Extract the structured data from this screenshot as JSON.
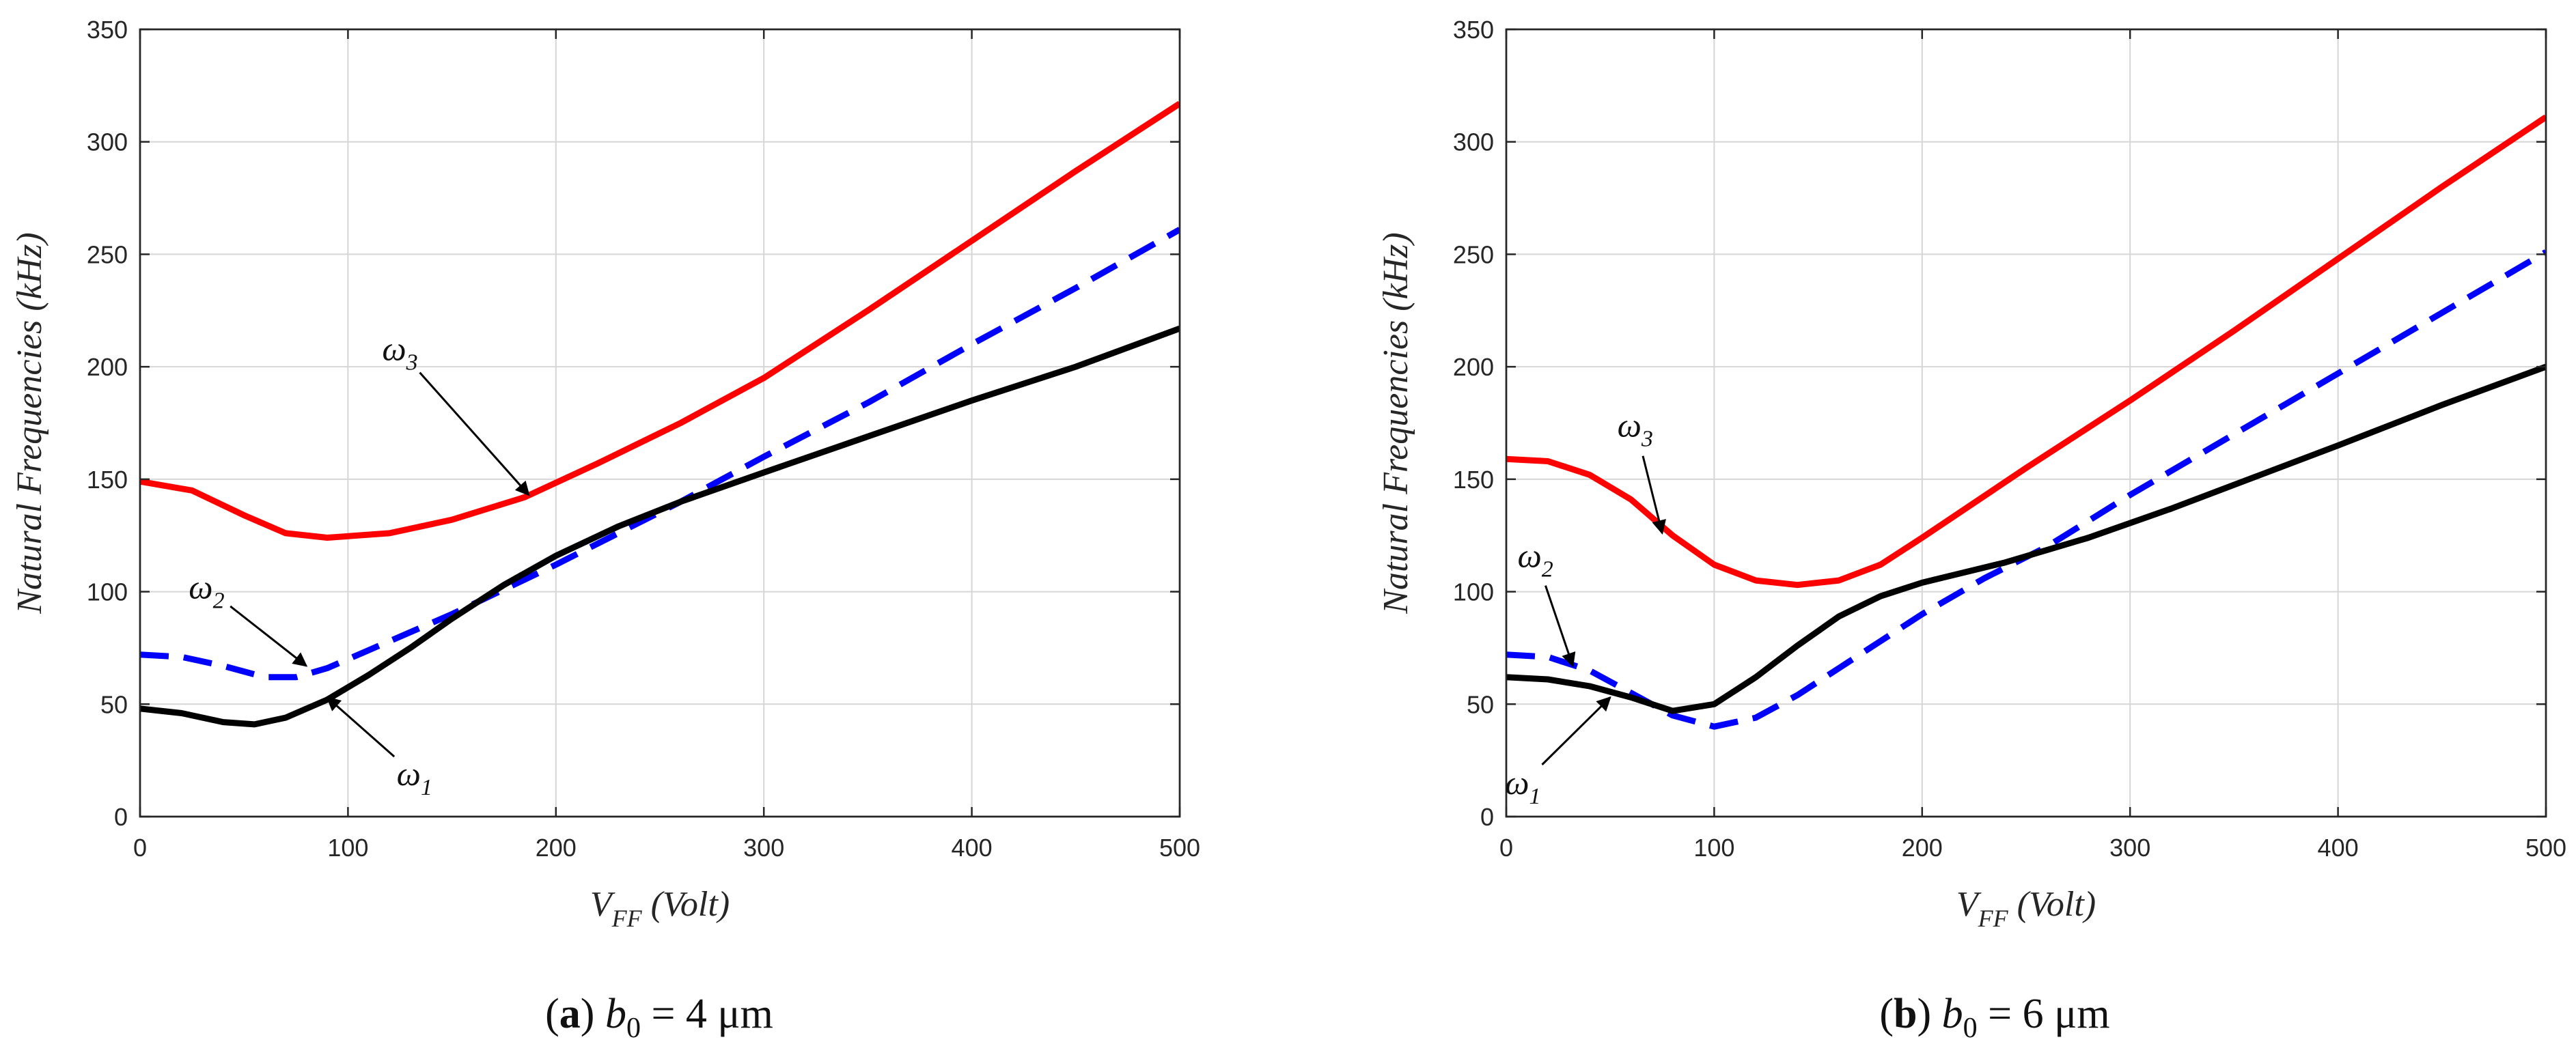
{
  "chart_data": [
    {
      "type": "line",
      "panel": "a",
      "caption": {
        "letter": "a",
        "param": "b",
        "param_sub": "0",
        "equals": "= 4 μm"
      },
      "xlabel": "V",
      "xlabel_sub": "FF",
      "xlabel_unit": "(Volt)",
      "ylabel": "Natural Frequencies (kHz)",
      "xlim": [
        0,
        500
      ],
      "ylim": [
        0,
        350
      ],
      "xticks": [
        0,
        100,
        200,
        300,
        400,
        500
      ],
      "yticks": [
        0,
        50,
        100,
        150,
        200,
        250,
        300,
        350
      ],
      "grid": true,
      "series": [
        {
          "name": "ω3",
          "sym": "ω",
          "sub": "3",
          "color": "#ff0000",
          "dash": "solid",
          "x": [
            0,
            25,
            50,
            70,
            90,
            120,
            150,
            185,
            220,
            260,
            300,
            350,
            400,
            450,
            500
          ],
          "y": [
            149,
            145,
            134,
            126,
            124,
            126,
            132,
            142,
            157,
            175,
            195,
            225,
            256,
            287,
            317
          ]
        },
        {
          "name": "ω2",
          "sym": "ω",
          "sub": "2",
          "color": "#0000ff",
          "dash": "dashed",
          "x": [
            0,
            20,
            40,
            60,
            75,
            90,
            110,
            130,
            150,
            175,
            200,
            230,
            260,
            300,
            350,
            400,
            450,
            500
          ],
          "y": [
            72,
            71,
            67,
            62,
            62,
            66,
            74,
            82,
            90,
            101,
            112,
            126,
            140,
            160,
            184,
            210,
            235,
            261
          ]
        },
        {
          "name": "ω1",
          "sym": "ω",
          "sub": "1",
          "color": "#000000",
          "dash": "solid",
          "x": [
            0,
            20,
            40,
            55,
            70,
            90,
            110,
            130,
            150,
            175,
            200,
            230,
            260,
            300,
            350,
            400,
            450,
            500
          ],
          "y": [
            48,
            46,
            42,
            41,
            44,
            52,
            63,
            75,
            88,
            103,
            116,
            129,
            140,
            153,
            169,
            185,
            200,
            217
          ]
        }
      ],
      "annotations": [
        {
          "series": "ω3",
          "x_text": 125,
          "y_text": 203,
          "x_point": 187,
          "y_point": 143
        },
        {
          "series": "ω2",
          "x_text": 32,
          "y_text": 97,
          "x_point": 80,
          "y_point": 67
        },
        {
          "series": "ω1",
          "x_text": 132,
          "y_text": 14,
          "x_point": 90,
          "y_point": 53
        }
      ]
    },
    {
      "type": "line",
      "panel": "b",
      "caption": {
        "letter": "b",
        "param": "b",
        "param_sub": "0",
        "equals": "= 6 μm"
      },
      "xlabel": "V",
      "xlabel_sub": "FF",
      "xlabel_unit": "(Volt)",
      "ylabel": "Natural Frequencies (kHz)",
      "xlim": [
        0,
        500
      ],
      "ylim": [
        0,
        350
      ],
      "xticks": [
        0,
        100,
        200,
        300,
        400,
        500
      ],
      "yticks": [
        0,
        50,
        100,
        150,
        200,
        250,
        300,
        350
      ],
      "grid": true,
      "series": [
        {
          "name": "ω3",
          "sym": "ω",
          "sub": "3",
          "color": "#ff0000",
          "dash": "solid",
          "x": [
            0,
            20,
            40,
            60,
            80,
            100,
            120,
            140,
            160,
            180,
            200,
            250,
            300,
            350,
            400,
            450,
            500
          ],
          "y": [
            159,
            158,
            152,
            141,
            125,
            112,
            105,
            103,
            105,
            112,
            124,
            155,
            185,
            216,
            248,
            280,
            311
          ]
        },
        {
          "name": "ω2",
          "sym": "ω",
          "sub": "2",
          "color": "#0000ff",
          "dash": "dashed",
          "x": [
            0,
            20,
            40,
            60,
            80,
            100,
            120,
            140,
            160,
            180,
            200,
            230,
            260,
            300,
            350,
            400,
            450,
            500
          ],
          "y": [
            72,
            71,
            65,
            55,
            45,
            40,
            44,
            54,
            66,
            78,
            90,
            106,
            120,
            143,
            170,
            197,
            224,
            251
          ]
        },
        {
          "name": "ω1",
          "sym": "ω",
          "sub": "1",
          "color": "#000000",
          "dash": "solid",
          "x": [
            0,
            20,
            40,
            60,
            80,
            100,
            120,
            140,
            160,
            180,
            200,
            240,
            280,
            320,
            360,
            400,
            450,
            500
          ],
          "y": [
            62,
            61,
            58,
            53,
            47,
            50,
            62,
            76,
            89,
            98,
            104,
            113,
            124,
            137,
            151,
            165,
            183,
            200
          ]
        }
      ],
      "annotations": [
        {
          "series": "ω3",
          "x_text": 62,
          "y_text": 169,
          "x_point": 75,
          "y_point": 126
        },
        {
          "series": "ω2",
          "x_text": 14,
          "y_text": 111,
          "x_point": 32,
          "y_point": 67
        },
        {
          "series": "ω1",
          "x_text": 8,
          "y_text": 10,
          "x_point": 50,
          "y_point": 53
        }
      ]
    }
  ]
}
